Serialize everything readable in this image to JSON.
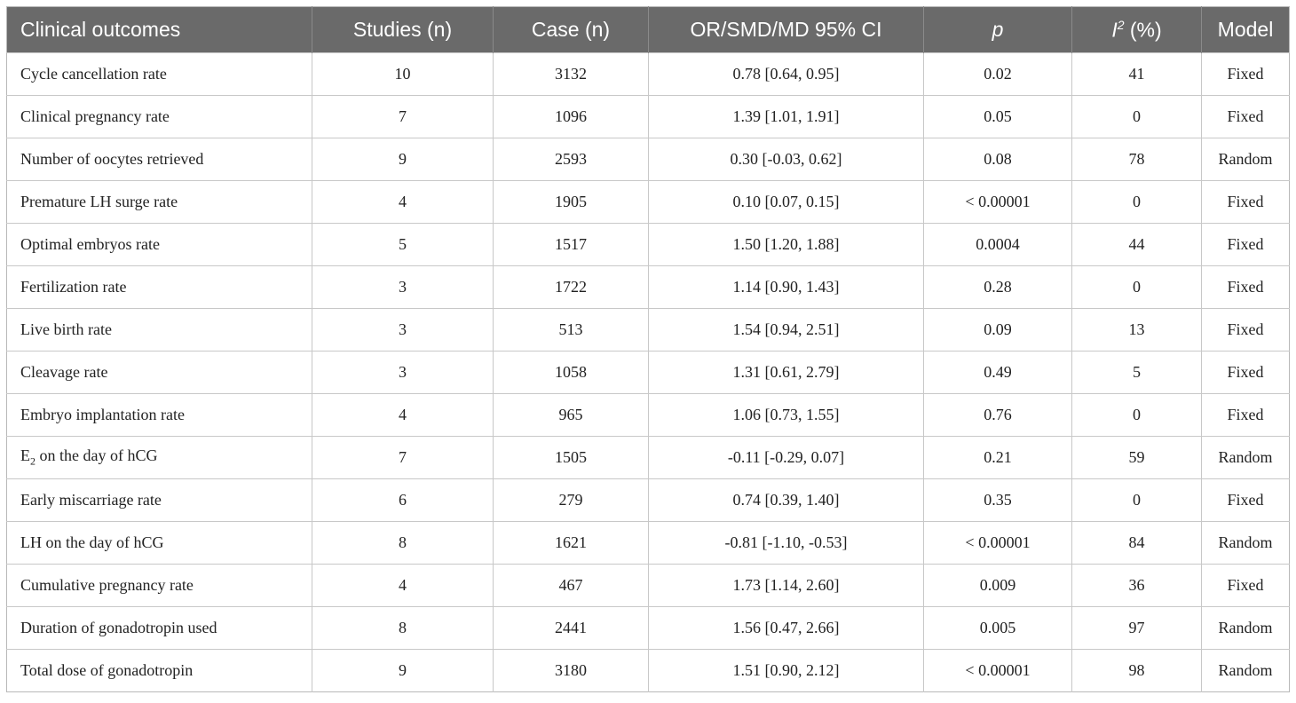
{
  "header": {
    "outcome": "Clinical outcomes",
    "studies": "Studies (n)",
    "cases": "Case (n)",
    "effect": "OR/SMD/MD 95% CI",
    "p": "p",
    "i2_letter": "I",
    "i2_sup": "2",
    "i2_unit": " (%)",
    "model": "Model"
  },
  "rows": [
    {
      "outcome": "Cycle cancellation rate",
      "studies": "10",
      "cases": "3132",
      "effect": "0.78 [0.64, 0.95]",
      "p": "0.02",
      "i2": "41",
      "model": "Fixed"
    },
    {
      "outcome": "Clinical pregnancy rate",
      "studies": "7",
      "cases": "1096",
      "effect": "1.39 [1.01, 1.91]",
      "p": "0.05",
      "i2": "0",
      "model": "Fixed"
    },
    {
      "outcome": "Number of oocytes retrieved",
      "studies": "9",
      "cases": "2593",
      "effect": "0.30 [-0.03, 0.62]",
      "p": "0.08",
      "i2": "78",
      "model": "Random"
    },
    {
      "outcome": "Premature LH surge rate",
      "studies": "4",
      "cases": "1905",
      "effect": "0.10 [0.07, 0.15]",
      "p": "< 0.00001",
      "i2": "0",
      "model": "Fixed"
    },
    {
      "outcome": "Optimal embryos rate",
      "studies": "5",
      "cases": "1517",
      "effect": "1.50 [1.20, 1.88]",
      "p": "0.0004",
      "i2": "44",
      "model": "Fixed"
    },
    {
      "outcome": "Fertilization rate",
      "studies": "3",
      "cases": "1722",
      "effect": "1.14 [0.90, 1.43]",
      "p": "0.28",
      "i2": "0",
      "model": "Fixed"
    },
    {
      "outcome": "Live birth rate",
      "studies": "3",
      "cases": "513",
      "effect": "1.54 [0.94, 2.51]",
      "p": "0.09",
      "i2": "13",
      "model": "Fixed"
    },
    {
      "outcome": "Cleavage rate",
      "studies": "3",
      "cases": "1058",
      "effect": "1.31 [0.61, 2.79]",
      "p": "0.49",
      "i2": "5",
      "model": "Fixed"
    },
    {
      "outcome": "Embryo implantation rate",
      "studies": "4",
      "cases": "965",
      "effect": "1.06 [0.73, 1.55]",
      "p": "0.76",
      "i2": "0",
      "model": "Fixed"
    },
    {
      "outcome_main": "E",
      "outcome_sub": "2",
      "outcome_rest": " on the day of hCG",
      "studies": "7",
      "cases": "1505",
      "effect": "-0.11 [-0.29, 0.07]",
      "p": "0.21",
      "i2": "59",
      "model": "Random"
    },
    {
      "outcome": "Early miscarriage rate",
      "studies": "6",
      "cases": "279",
      "effect": "0.74 [0.39, 1.40]",
      "p": "0.35",
      "i2": "0",
      "model": "Fixed"
    },
    {
      "outcome": "LH on the day of hCG",
      "studies": "8",
      "cases": "1621",
      "effect": "-0.81 [-1.10, -0.53]",
      "p": "< 0.00001",
      "i2": "84",
      "model": "Random"
    },
    {
      "outcome": "Cumulative pregnancy rate",
      "studies": "4",
      "cases": "467",
      "effect": "1.73 [1.14, 2.60]",
      "p": "0.009",
      "i2": "36",
      "model": "Fixed"
    },
    {
      "outcome": "Duration of gonadotropin used",
      "studies": "8",
      "cases": "2441",
      "effect": "1.56 [0.47, 2.66]",
      "p": "0.005",
      "i2": "97",
      "model": "Random"
    },
    {
      "outcome": "Total dose of gonadotropin",
      "studies": "9",
      "cases": "3180",
      "effect": "1.51 [0.90, 2.12]",
      "p": "< 0.00001",
      "i2": "98",
      "model": "Random"
    }
  ]
}
